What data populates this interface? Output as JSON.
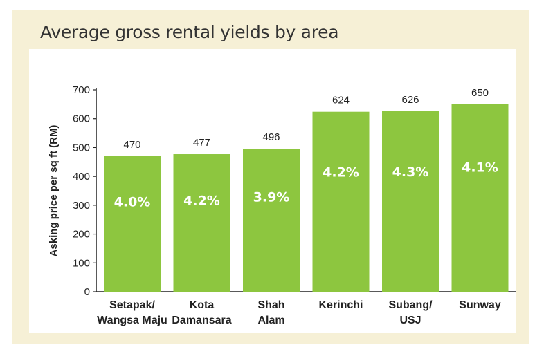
{
  "chart_data": {
    "type": "bar",
    "title": "Average gross rental yields by area",
    "ylabel": "Asking price per sq ft (RM)",
    "xlabel": "",
    "ylim": [
      0,
      700
    ],
    "yticks": [
      0,
      100,
      200,
      300,
      400,
      500,
      600,
      700
    ],
    "categories": [
      [
        "Setapak/",
        "Wangsa Maju"
      ],
      [
        "Kota",
        "Damansara"
      ],
      [
        "Shah",
        "Alam"
      ],
      [
        "Kerinchi"
      ],
      [
        "Subang/",
        "USJ"
      ],
      [
        "Sunway"
      ]
    ],
    "values": [
      470,
      477,
      496,
      624,
      626,
      650
    ],
    "yields": [
      "4.0%",
      "4.2%",
      "3.9%",
      "4.2%",
      "4.3%",
      "4.1%"
    ],
    "grid": false,
    "bar_color": "#8dc63f",
    "background_color": "#f6f0d6"
  }
}
